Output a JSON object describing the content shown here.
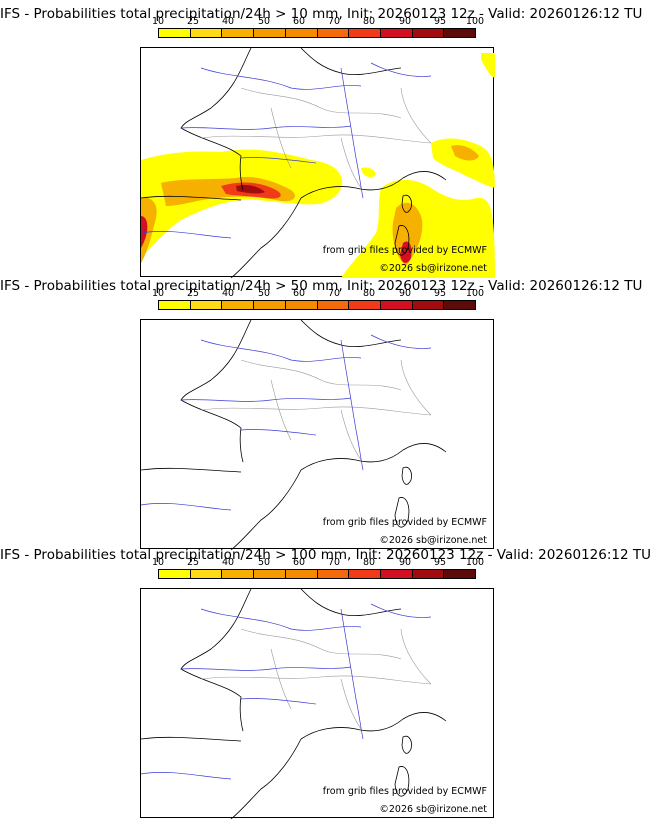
{
  "scale_ticks": [
    "10",
    "25",
    "40",
    "50",
    "60",
    "70",
    "80",
    "90",
    "95",
    "100"
  ],
  "scale_colors": [
    "#ffff00",
    "#fddb16",
    "#f6b100",
    "#f39b00",
    "#f58a00",
    "#f46a0a",
    "#f03a1a",
    "#d2101f",
    "#a20c0e",
    "#5c0a0a"
  ],
  "credits": {
    "source": "from grib files provided by ECMWF",
    "copyright": "©2026 sb@irizone.net"
  },
  "panels": [
    {
      "title": "IFS - Probabilities total precipitation/24h > 10 mm, Init: 20260123 12z - Valid: 20260126:12 TU",
      "precip_signal": "high"
    },
    {
      "title": "IFS - Probabilities total precipitation/24h > 50 mm, Init: 20260123 12z - Valid: 20260126:12 TU",
      "precip_signal": "none"
    },
    {
      "title": "IFS - Probabilities total precipitation/24h > 100 mm, Init: 20260123 12z - Valid: 20260126:12 TU",
      "precip_signal": "none"
    }
  ]
}
